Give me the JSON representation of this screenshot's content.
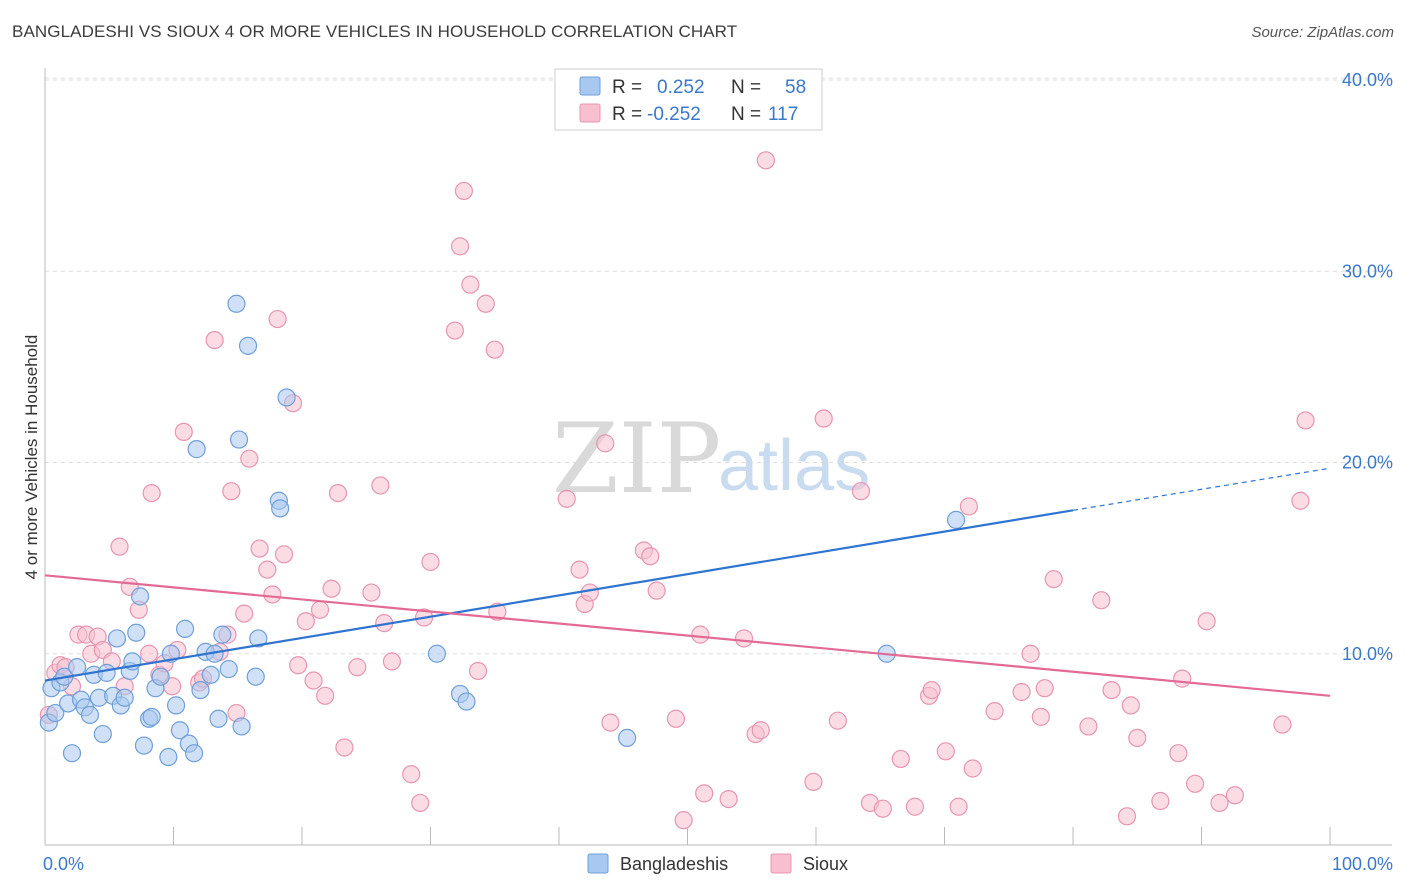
{
  "title": "BANGLADESHI VS SIOUX 4 OR MORE VEHICLES IN HOUSEHOLD CORRELATION CHART",
  "source": "Source: ZipAtlas.com",
  "watermark": {
    "zip": "ZIP",
    "atlas": "atlas"
  },
  "colors": {
    "blue_fill": "#a9c8f0",
    "blue_stroke": "#6f9fd8",
    "blue_line": "#2e74d0",
    "pink_fill": "#f7bfd0",
    "pink_stroke": "#e795b0",
    "pink_line": "#e26a95",
    "tick": "#3a78c9",
    "grid": "#dddddd"
  },
  "legend": {
    "row1": {
      "r_label": "R =",
      "r_value": "0.252",
      "n_label": "N =",
      "n_value": "58"
    },
    "row2": {
      "r_label": "R =",
      "r_value": "-0.252",
      "n_label": "N =",
      "n_value": "117"
    }
  },
  "chart_data": {
    "type": "scatter",
    "title": "BANGLADESHI VS SIOUX 4 OR MORE VEHICLES IN HOUSEHOLD CORRELATION CHART",
    "xlabel": "",
    "ylabel": "4 or more Vehicles in Household",
    "xlim": [
      0,
      100
    ],
    "ylim": [
      0,
      40
    ],
    "x_tick_labels": [
      "0.0%",
      "100.0%"
    ],
    "y_ticks": [
      10,
      20,
      30,
      40
    ],
    "y_tick_labels": [
      "10.0%",
      "20.0%",
      "30.0%",
      "40.0%"
    ],
    "grid": true,
    "series": [
      {
        "name": "Bangladeshis",
        "color": "blue",
        "trend": {
          "x0": 0,
          "y0": 8.6,
          "x1": 80,
          "y1": 17.5,
          "dash_to_x": 100,
          "dash_to_y": 19.7
        },
        "points": [
          [
            0.3,
            6.4
          ],
          [
            0.5,
            8.2
          ],
          [
            0.8,
            6.9
          ],
          [
            1.2,
            8.5
          ],
          [
            1.5,
            8.8
          ],
          [
            1.8,
            7.4
          ],
          [
            2.1,
            4.8
          ],
          [
            2.5,
            9.3
          ],
          [
            2.8,
            7.6
          ],
          [
            3.1,
            7.2
          ],
          [
            3.5,
            6.8
          ],
          [
            3.8,
            8.9
          ],
          [
            4.2,
            7.7
          ],
          [
            4.5,
            5.8
          ],
          [
            4.8,
            9.0
          ],
          [
            5.3,
            7.8
          ],
          [
            5.6,
            10.8
          ],
          [
            5.9,
            7.3
          ],
          [
            6.2,
            7.7
          ],
          [
            6.6,
            9.1
          ],
          [
            6.8,
            9.6
          ],
          [
            7.1,
            11.1
          ],
          [
            7.4,
            13.0
          ],
          [
            7.7,
            5.2
          ],
          [
            8.1,
            6.6
          ],
          [
            8.3,
            6.7
          ],
          [
            8.6,
            8.2
          ],
          [
            9.0,
            8.8
          ],
          [
            9.6,
            4.6
          ],
          [
            9.8,
            10.0
          ],
          [
            10.2,
            7.3
          ],
          [
            10.5,
            6.0
          ],
          [
            10.9,
            11.3
          ],
          [
            11.2,
            5.3
          ],
          [
            11.6,
            4.8
          ],
          [
            11.8,
            20.7
          ],
          [
            12.1,
            8.1
          ],
          [
            12.5,
            10.1
          ],
          [
            12.9,
            8.9
          ],
          [
            13.2,
            10.0
          ],
          [
            13.5,
            6.6
          ],
          [
            13.8,
            11.0
          ],
          [
            14.3,
            9.2
          ],
          [
            14.9,
            28.3
          ],
          [
            15.1,
            21.2
          ],
          [
            15.3,
            6.2
          ],
          [
            15.8,
            26.1
          ],
          [
            16.4,
            8.8
          ],
          [
            16.6,
            10.8
          ],
          [
            18.2,
            18.0
          ],
          [
            18.3,
            17.6
          ],
          [
            18.8,
            23.4
          ],
          [
            30.5,
            10.0
          ],
          [
            32.3,
            7.9
          ],
          [
            32.8,
            7.5
          ],
          [
            45.3,
            5.6
          ],
          [
            70.9,
            17.0
          ],
          [
            65.5,
            10.0
          ]
        ]
      },
      {
        "name": "Sioux",
        "color": "pink",
        "trend": {
          "x0": 0,
          "y0": 14.1,
          "x1": 100,
          "y1": 7.8
        },
        "points": [
          [
            0.3,
            6.8
          ],
          [
            0.8,
            9.0
          ],
          [
            1.2,
            9.4
          ],
          [
            1.6,
            9.3
          ],
          [
            2.1,
            8.3
          ],
          [
            2.6,
            11.0
          ],
          [
            3.2,
            11.0
          ],
          [
            3.6,
            10.0
          ],
          [
            4.1,
            10.9
          ],
          [
            4.5,
            10.2
          ],
          [
            5.2,
            9.6
          ],
          [
            5.8,
            15.6
          ],
          [
            6.2,
            8.3
          ],
          [
            6.6,
            13.5
          ],
          [
            7.3,
            12.3
          ],
          [
            8.1,
            10.0
          ],
          [
            8.3,
            18.4
          ],
          [
            8.9,
            8.9
          ],
          [
            9.3,
            9.5
          ],
          [
            9.9,
            8.3
          ],
          [
            10.3,
            10.2
          ],
          [
            10.8,
            21.6
          ],
          [
            12.0,
            8.5
          ],
          [
            12.3,
            8.7
          ],
          [
            13.2,
            26.4
          ],
          [
            13.6,
            10.1
          ],
          [
            14.2,
            11.0
          ],
          [
            14.5,
            18.5
          ],
          [
            14.9,
            6.9
          ],
          [
            15.5,
            12.1
          ],
          [
            15.9,
            20.2
          ],
          [
            16.7,
            15.5
          ],
          [
            17.3,
            14.4
          ],
          [
            17.7,
            13.1
          ],
          [
            18.1,
            27.5
          ],
          [
            18.6,
            15.2
          ],
          [
            19.3,
            23.1
          ],
          [
            19.7,
            9.4
          ],
          [
            20.3,
            11.7
          ],
          [
            20.9,
            8.6
          ],
          [
            21.4,
            12.3
          ],
          [
            21.8,
            7.8
          ],
          [
            22.3,
            13.4
          ],
          [
            22.8,
            18.4
          ],
          [
            23.3,
            5.1
          ],
          [
            24.3,
            9.3
          ],
          [
            25.4,
            13.2
          ],
          [
            26.1,
            18.8
          ],
          [
            26.4,
            11.6
          ],
          [
            27.0,
            9.6
          ],
          [
            28.5,
            3.7
          ],
          [
            29.2,
            2.2
          ],
          [
            29.5,
            11.9
          ],
          [
            30.0,
            14.8
          ],
          [
            31.9,
            26.9
          ],
          [
            32.3,
            31.3
          ],
          [
            32.6,
            34.2
          ],
          [
            33.1,
            29.3
          ],
          [
            33.7,
            9.1
          ],
          [
            34.3,
            28.3
          ],
          [
            35.0,
            25.9
          ],
          [
            35.2,
            12.2
          ],
          [
            40.6,
            18.1
          ],
          [
            41.6,
            14.4
          ],
          [
            42.0,
            12.6
          ],
          [
            42.4,
            13.2
          ],
          [
            43.6,
            21.0
          ],
          [
            44.0,
            6.4
          ],
          [
            46.6,
            15.4
          ],
          [
            47.1,
            15.1
          ],
          [
            47.6,
            13.3
          ],
          [
            49.1,
            6.6
          ],
          [
            49.7,
            1.3
          ],
          [
            51.0,
            11.0
          ],
          [
            51.3,
            2.7
          ],
          [
            53.2,
            2.4
          ],
          [
            54.4,
            10.8
          ],
          [
            55.3,
            5.8
          ],
          [
            55.7,
            6.0
          ],
          [
            56.1,
            35.8
          ],
          [
            59.8,
            3.3
          ],
          [
            60.6,
            22.3
          ],
          [
            61.7,
            6.5
          ],
          [
            63.5,
            18.5
          ],
          [
            64.2,
            2.2
          ],
          [
            65.2,
            1.9
          ],
          [
            66.6,
            4.5
          ],
          [
            67.7,
            2.0
          ],
          [
            68.8,
            7.8
          ],
          [
            69.0,
            8.1
          ],
          [
            70.1,
            4.9
          ],
          [
            71.1,
            2.0
          ],
          [
            71.9,
            17.7
          ],
          [
            72.2,
            4.0
          ],
          [
            73.9,
            7.0
          ],
          [
            76.0,
            8.0
          ],
          [
            76.7,
            10.0
          ],
          [
            77.5,
            6.7
          ],
          [
            77.8,
            8.2
          ],
          [
            78.5,
            13.9
          ],
          [
            81.2,
            6.2
          ],
          [
            82.2,
            12.8
          ],
          [
            83.0,
            8.1
          ],
          [
            84.2,
            1.5
          ],
          [
            84.5,
            7.3
          ],
          [
            85.0,
            5.6
          ],
          [
            86.8,
            2.3
          ],
          [
            88.2,
            4.8
          ],
          [
            88.5,
            8.7
          ],
          [
            89.5,
            3.2
          ],
          [
            90.4,
            11.7
          ],
          [
            91.4,
            2.2
          ],
          [
            92.6,
            2.6
          ],
          [
            96.3,
            6.3
          ],
          [
            97.7,
            18.0
          ],
          [
            98.1,
            22.2
          ]
        ]
      }
    ],
    "legend_entries": [
      "Bangladeshis",
      "Sioux"
    ]
  }
}
